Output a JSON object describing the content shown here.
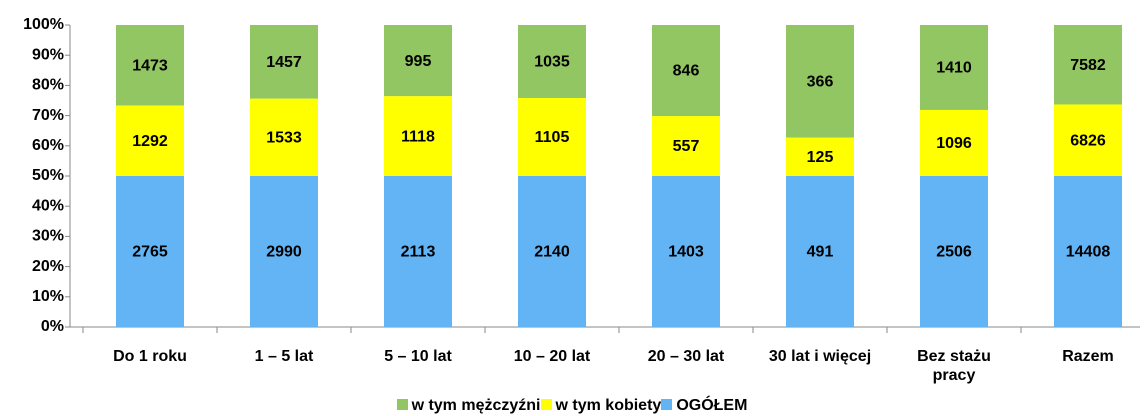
{
  "chart_data": {
    "type": "bar",
    "stack": "percent",
    "categories": [
      "Do 1 roku",
      "1 – 5 lat",
      "5 – 10 lat",
      "10 – 20 lat",
      "20 – 30 lat",
      "30 lat i więcej",
      "Bez stażu pracy",
      "Razem"
    ],
    "series": [
      {
        "name": "w tym mężczyźni",
        "color": "#92c663",
        "values": [
          1473,
          1457,
          995,
          1035,
          846,
          366,
          1410,
          7582
        ]
      },
      {
        "name": "w tym kobiety",
        "color": "#ffff00",
        "values": [
          1292,
          1533,
          1118,
          1105,
          557,
          125,
          1096,
          6826
        ]
      },
      {
        "name": "OGÓŁEM",
        "color": "#63b4f5",
        "values": [
          2765,
          2990,
          2113,
          2140,
          1403,
          491,
          2506,
          14408
        ]
      }
    ],
    "ylim": [
      0,
      100
    ],
    "yticks": [
      {
        "value": 0,
        "label": "0%"
      },
      {
        "value": 10,
        "label": "10%"
      },
      {
        "value": 20,
        "label": "20%"
      },
      {
        "value": 30,
        "label": "30%"
      },
      {
        "value": 40,
        "label": "40%"
      },
      {
        "value": 50,
        "label": "50%"
      },
      {
        "value": 60,
        "label": "60%"
      },
      {
        "value": 70,
        "label": "70%"
      },
      {
        "value": 80,
        "label": "80%"
      },
      {
        "value": 90,
        "label": "90%"
      },
      {
        "value": 100,
        "label": "100%"
      }
    ],
    "grid": false,
    "legend": "bottom"
  }
}
